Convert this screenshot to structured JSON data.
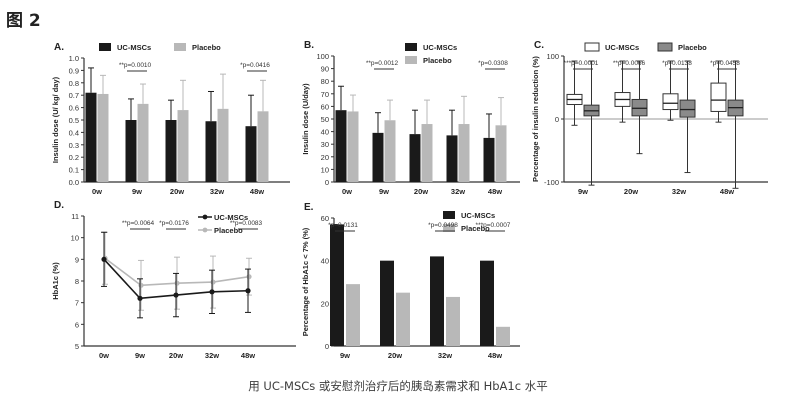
{
  "figure_title": "图 2",
  "caption": "用 UC-MSCs 或安慰剂治疗后的胰岛素需求和 HbA1c 水平",
  "colors": {
    "uc": "#1a1a1a",
    "placebo": "#b8b8b8",
    "axis": "#333333"
  },
  "chart_data": [
    {
      "panel": "A.",
      "type": "bar",
      "ylabel": "Insulin dose (U/ kg/ day)",
      "ylim": [
        0,
        1.0
      ],
      "yticks": [
        "0.0",
        "0.1",
        "0.2",
        "0.3",
        "0.4",
        "0.5",
        "0.6",
        "0.7",
        "0.8",
        "0.9",
        "1.0"
      ],
      "categories": [
        "0w",
        "9w",
        "20w",
        "32w",
        "48w"
      ],
      "series": [
        {
          "name": "UC-MSCs",
          "values": [
            0.72,
            0.5,
            0.5,
            0.49,
            0.45
          ],
          "err": [
            0.2,
            0.17,
            0.16,
            0.24,
            0.25
          ]
        },
        {
          "name": "Placebo",
          "values": [
            0.71,
            0.63,
            0.58,
            0.59,
            0.57
          ],
          "err": [
            0.15,
            0.16,
            0.24,
            0.28,
            0.25
          ]
        }
      ],
      "annotations": [
        {
          "text": "**p=0.0010",
          "category": 1
        },
        {
          "text": "*p=0.0416",
          "category": 4
        }
      ]
    },
    {
      "panel": "B.",
      "type": "bar",
      "ylabel": "Insulin dose (U/day)",
      "ylim": [
        0,
        100
      ],
      "yticks": [
        "0",
        "10",
        "20",
        "30",
        "40",
        "50",
        "60",
        "70",
        "80",
        "90",
        "100"
      ],
      "categories": [
        "0w",
        "9w",
        "20w",
        "32w",
        "48w"
      ],
      "series": [
        {
          "name": "UC-MSCs",
          "values": [
            57,
            39,
            38,
            37,
            35
          ],
          "err": [
            19,
            16,
            19,
            20,
            19
          ]
        },
        {
          "name": "Placebo",
          "values": [
            56,
            49,
            46,
            46,
            45
          ],
          "err": [
            13,
            16,
            19,
            22,
            22
          ]
        }
      ],
      "annotations": [
        {
          "text": "**p=0.0012",
          "category": 1
        },
        {
          "text": "*p=0.0308",
          "category": 4
        }
      ]
    },
    {
      "panel": "C.",
      "type": "box",
      "ylabel": "Percentage of insulin reduction (%)",
      "ylim": [
        -100,
        100
      ],
      "yticks": [
        "-100",
        "0",
        "100"
      ],
      "categories": [
        "9w",
        "20w",
        "32w",
        "48w"
      ],
      "series": [
        {
          "name": "UC-MSCs",
          "boxes": [
            {
              "min": -10,
              "q1": 23,
              "median": 31,
              "q3": 39,
              "max": 92
            },
            {
              "min": -5,
              "q1": 20,
              "median": 31,
              "q3": 42,
              "max": 92
            },
            {
              "min": -2,
              "q1": 15,
              "median": 25,
              "q3": 40,
              "max": 92
            },
            {
              "min": -5,
              "q1": 12,
              "median": 30,
              "q3": 57,
              "max": 92
            }
          ]
        },
        {
          "name": "Placebo",
          "boxes": [
            {
              "min": -105,
              "q1": 5,
              "median": 13,
              "q3": 22,
              "max": 92
            },
            {
              "min": -55,
              "q1": 5,
              "median": 17,
              "q3": 31,
              "max": 92
            },
            {
              "min": -85,
              "q1": 3,
              "median": 15,
              "q3": 30,
              "max": 92
            },
            {
              "min": -110,
              "q1": 5,
              "median": 18,
              "q3": 30,
              "max": 92
            }
          ]
        }
      ],
      "annotations": [
        {
          "text": "***p=0.0001",
          "category": 0
        },
        {
          "text": "**p=0.0066",
          "category": 1
        },
        {
          "text": "*p=0.0138",
          "category": 2
        },
        {
          "text": "*p=0.0458",
          "category": 3
        }
      ]
    },
    {
      "panel": "D.",
      "type": "line",
      "ylabel": "HbA1c (%)",
      "ylim": [
        5,
        11
      ],
      "yticks": [
        "5",
        "6",
        "7",
        "8",
        "9",
        "10",
        "11"
      ],
      "categories": [
        "0w",
        "9w",
        "20w",
        "32w",
        "48w"
      ],
      "series": [
        {
          "name": "UC-MSCs",
          "values": [
            9.0,
            7.2,
            7.35,
            7.5,
            7.55
          ],
          "err": [
            1.25,
            0.9,
            1.0,
            1.0,
            1.0
          ]
        },
        {
          "name": "Placebo",
          "values": [
            9.05,
            7.8,
            7.9,
            7.95,
            8.2
          ],
          "err": [
            1.2,
            1.15,
            1.2,
            1.2,
            0.85
          ]
        }
      ],
      "annotations": [
        {
          "text": "**p=0.0064",
          "category": 1
        },
        {
          "text": "*p=0.0176",
          "category": 2
        },
        {
          "text": "**p=0.0083",
          "category": 4
        }
      ]
    },
    {
      "panel": "E.",
      "type": "bar",
      "ylabel": "Percentage of HbA1c < 7% (%)",
      "ylim": [
        0,
        60
      ],
      "yticks": [
        "0",
        "20",
        "40",
        "60"
      ],
      "categories": [
        "9w",
        "20w",
        "32w",
        "48w"
      ],
      "series": [
        {
          "name": "UC-MSCs",
          "values": [
            57,
            40,
            42,
            40
          ]
        },
        {
          "name": "Placebo",
          "values": [
            29,
            25,
            23,
            9
          ]
        }
      ],
      "annotations": [
        {
          "text": "*p=0.0131",
          "category": 0
        },
        {
          "text": "*p=0.0498",
          "category": 2
        },
        {
          "text": "***p=0.0007",
          "category": 3
        }
      ]
    }
  ]
}
